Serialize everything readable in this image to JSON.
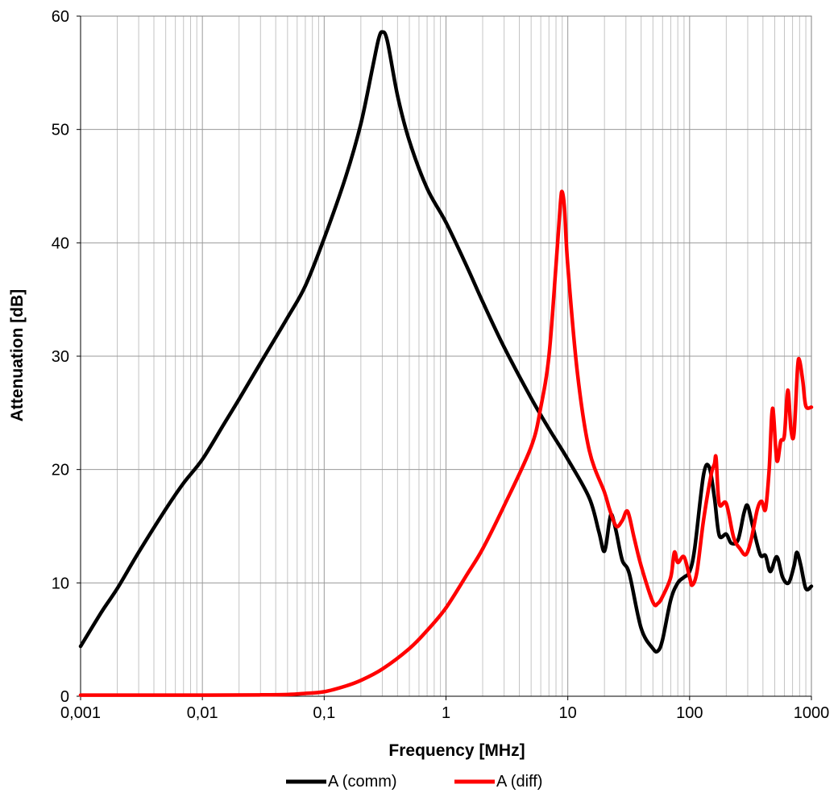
{
  "chart_data": {
    "type": "line",
    "xlabel": "Frequency [MHz]",
    "ylabel": "Attenuation [dB]",
    "xscale": "log",
    "xlim": [
      0.001,
      1000
    ],
    "ylim": [
      0,
      60
    ],
    "grid": true,
    "legend_position": "bottom",
    "x_tick_labels": [
      "0,001",
      "0,01",
      "0,1",
      "1",
      "10",
      "100",
      "1000"
    ],
    "y_tick_labels": [
      "0",
      "10",
      "20",
      "30",
      "40",
      "50",
      "60"
    ],
    "series": [
      {
        "name": "A (comm)",
        "color": "#000000",
        "points": [
          [
            0.001,
            4.4
          ],
          [
            0.0015,
            7.5
          ],
          [
            0.002,
            9.5
          ],
          [
            0.003,
            12.7
          ],
          [
            0.005,
            16.5
          ],
          [
            0.007,
            18.8
          ],
          [
            0.01,
            20.9
          ],
          [
            0.015,
            24.0
          ],
          [
            0.02,
            26.2
          ],
          [
            0.03,
            29.4
          ],
          [
            0.05,
            33.4
          ],
          [
            0.07,
            36.2
          ],
          [
            0.1,
            40.4
          ],
          [
            0.15,
            45.8
          ],
          [
            0.2,
            50.5
          ],
          [
            0.25,
            55.5
          ],
          [
            0.28,
            58.0
          ],
          [
            0.3,
            58.6
          ],
          [
            0.33,
            57.8
          ],
          [
            0.4,
            53.0
          ],
          [
            0.5,
            49.0
          ],
          [
            0.7,
            44.8
          ],
          [
            1.0,
            41.8
          ],
          [
            1.5,
            37.8
          ],
          [
            2.0,
            34.8
          ],
          [
            3.0,
            30.8
          ],
          [
            5.0,
            26.3
          ],
          [
            7.0,
            23.6
          ],
          [
            10.0,
            20.9
          ],
          [
            15.0,
            17.5
          ],
          [
            18.0,
            14.5
          ],
          [
            20.0,
            12.8
          ],
          [
            22.0,
            15.5
          ],
          [
            23.0,
            16.0
          ],
          [
            25.0,
            14.5
          ],
          [
            28.0,
            12.0
          ],
          [
            32.0,
            10.8
          ],
          [
            40.0,
            6.0
          ],
          [
            50.0,
            4.2
          ],
          [
            55.0,
            4.0
          ],
          [
            60.0,
            5.0
          ],
          [
            70.0,
            8.5
          ],
          [
            80.0,
            10.0
          ],
          [
            90.0,
            10.5
          ],
          [
            100.0,
            11.0
          ],
          [
            110.0,
            13.0
          ],
          [
            130.0,
            19.5
          ],
          [
            145.0,
            20.2
          ],
          [
            160.0,
            17.5
          ],
          [
            175.0,
            14.2
          ],
          [
            200.0,
            14.3
          ],
          [
            220.0,
            13.5
          ],
          [
            250.0,
            13.8
          ],
          [
            280.0,
            16.2
          ],
          [
            300.0,
            16.8
          ],
          [
            330.0,
            15.0
          ],
          [
            380.0,
            12.5
          ],
          [
            420.0,
            12.4
          ],
          [
            460.0,
            11.0
          ],
          [
            520.0,
            12.3
          ],
          [
            580.0,
            10.5
          ],
          [
            650.0,
            10.0
          ],
          [
            720.0,
            11.5
          ],
          [
            760.0,
            12.7
          ],
          [
            820.0,
            11.5
          ],
          [
            900.0,
            9.5
          ],
          [
            1000.0,
            9.7
          ]
        ]
      },
      {
        "name": "A (diff)",
        "color": "#ff0000",
        "points": [
          [
            0.001,
            0.1
          ],
          [
            0.01,
            0.1
          ],
          [
            0.03,
            0.12
          ],
          [
            0.05,
            0.15
          ],
          [
            0.07,
            0.25
          ],
          [
            0.1,
            0.4
          ],
          [
            0.15,
            0.9
          ],
          [
            0.2,
            1.4
          ],
          [
            0.3,
            2.4
          ],
          [
            0.5,
            4.2
          ],
          [
            0.7,
            5.8
          ],
          [
            1.0,
            7.8
          ],
          [
            1.5,
            10.8
          ],
          [
            2.0,
            13.0
          ],
          [
            3.0,
            16.8
          ],
          [
            5.0,
            22.0
          ],
          [
            6.0,
            25.5
          ],
          [
            7.0,
            30.0
          ],
          [
            8.0,
            38.0
          ],
          [
            8.7,
            43.5
          ],
          [
            9.0,
            44.5
          ],
          [
            9.4,
            43.0
          ],
          [
            10.0,
            38.0
          ],
          [
            12.0,
            28.5
          ],
          [
            15.0,
            21.7
          ],
          [
            20.0,
            18.0
          ],
          [
            22.0,
            16.5
          ],
          [
            25.0,
            15.0
          ],
          [
            28.0,
            15.5
          ],
          [
            31.0,
            16.3
          ],
          [
            35.0,
            14.0
          ],
          [
            40.0,
            11.5
          ],
          [
            50.0,
            8.3
          ],
          [
            55.0,
            8.2
          ],
          [
            60.0,
            8.8
          ],
          [
            70.0,
            10.5
          ],
          [
            75.0,
            12.7
          ],
          [
            80.0,
            11.8
          ],
          [
            90.0,
            12.3
          ],
          [
            100.0,
            10.5
          ],
          [
            105.0,
            9.8
          ],
          [
            115.0,
            11.0
          ],
          [
            130.0,
            15.5
          ],
          [
            150.0,
            19.5
          ],
          [
            160.0,
            20.5
          ],
          [
            165.0,
            21.0
          ],
          [
            175.0,
            17.0
          ],
          [
            200.0,
            17.0
          ],
          [
            230.0,
            14.0
          ],
          [
            260.0,
            13.0
          ],
          [
            290.0,
            12.5
          ],
          [
            320.0,
            13.8
          ],
          [
            360.0,
            16.5
          ],
          [
            390.0,
            17.2
          ],
          [
            420.0,
            16.5
          ],
          [
            450.0,
            20.0
          ],
          [
            480.0,
            25.4
          ],
          [
            520.0,
            20.8
          ],
          [
            560.0,
            22.5
          ],
          [
            600.0,
            23.0
          ],
          [
            640.0,
            27.0
          ],
          [
            680.0,
            23.5
          ],
          [
            720.0,
            23.2
          ],
          [
            770.0,
            29.0
          ],
          [
            800.0,
            29.6
          ],
          [
            850.0,
            27.8
          ],
          [
            900.0,
            25.6
          ],
          [
            1000.0,
            25.5
          ]
        ]
      }
    ]
  }
}
